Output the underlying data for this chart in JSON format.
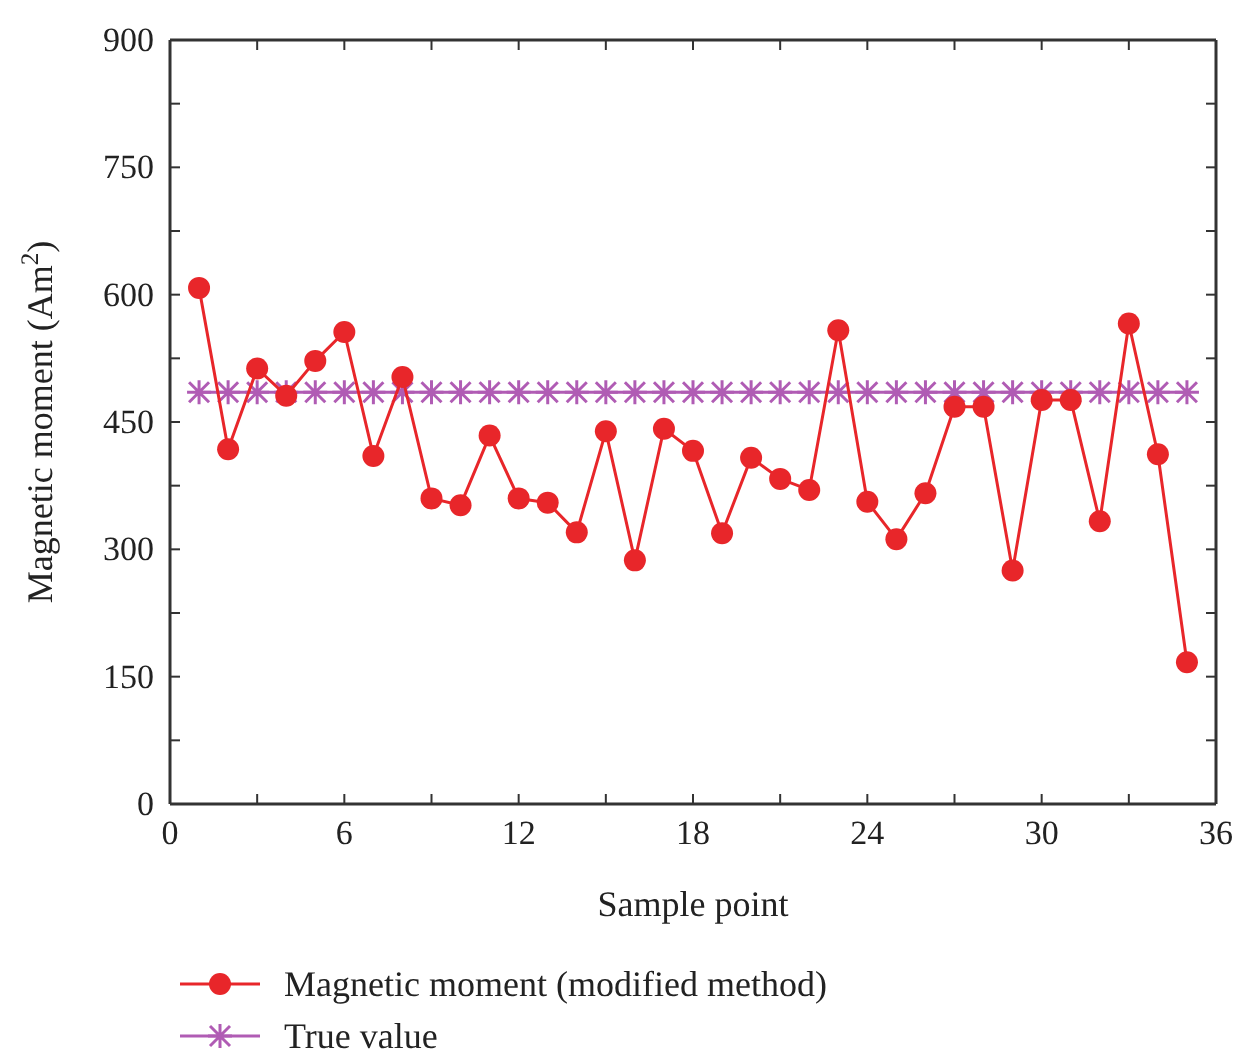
{
  "chart_data": {
    "type": "line",
    "xlabel": "Sample point",
    "ylabel": "Magnetic moment (Am$^{2}$)",
    "x": [
      1,
      2,
      3,
      4,
      5,
      6,
      7,
      8,
      9,
      10,
      11,
      12,
      13,
      14,
      15,
      16,
      17,
      18,
      19,
      20,
      21,
      22,
      23,
      24,
      25,
      26,
      27,
      28,
      29,
      30,
      31,
      32,
      33,
      34,
      35
    ],
    "series": [
      {
        "name": "Magnetic moment (modified method)",
        "color": "#e8262a",
        "marker": "circle",
        "values": [
          608,
          418,
          513,
          481,
          522,
          556,
          410,
          503,
          360,
          352,
          434,
          360,
          355,
          320,
          439,
          287,
          442,
          416,
          319,
          408,
          383,
          370,
          558,
          356,
          312,
          366,
          468,
          468,
          275,
          476,
          476,
          333,
          566,
          412,
          167
        ]
      },
      {
        "name": "True value",
        "color": "#b05cb4",
        "marker": "cross",
        "values": [
          485,
          485,
          485,
          485,
          485,
          485,
          485,
          485,
          485,
          485,
          485,
          485,
          485,
          485,
          485,
          485,
          485,
          485,
          485,
          485,
          485,
          485,
          485,
          485,
          485,
          485,
          485,
          485,
          485,
          485,
          485,
          485,
          485,
          485,
          485
        ]
      }
    ],
    "xlim": [
      0,
      36
    ],
    "xticks": [
      0,
      {
        "value": 3,
        "label": null
      },
      6,
      {
        "value": 9,
        "label": null
      },
      12,
      {
        "value": 15,
        "label": null
      },
      18,
      {
        "value": 21,
        "label": null
      },
      24,
      {
        "value": 27,
        "label": null
      },
      30,
      {
        "value": 33,
        "label": null
      },
      36
    ],
    "ylim": [
      0,
      900
    ],
    "yticks": [
      0,
      {
        "value": 75,
        "label": null
      },
      150,
      {
        "value": 225,
        "label": null
      },
      300,
      {
        "value": 375,
        "label": null
      },
      450,
      {
        "value": 525,
        "label": null
      },
      600,
      {
        "value": 675,
        "label": null
      },
      750,
      {
        "value": 825,
        "label": null
      },
      900
    ],
    "legend": "bottom",
    "grid": false
  }
}
